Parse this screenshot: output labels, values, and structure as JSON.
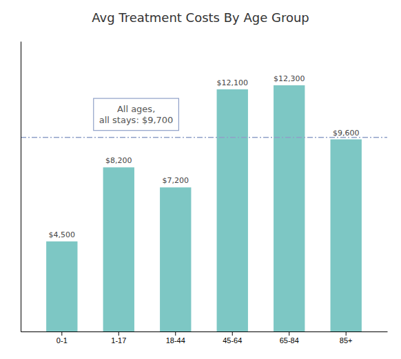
{
  "chart_data": {
    "type": "bar",
    "title": "Avg Treatment Costs By Age Group",
    "categories": [
      "0-1",
      "1-17",
      "18-44",
      "45-64",
      "65-84",
      "85+"
    ],
    "values": [
      4500,
      8200,
      7200,
      12100,
      12300,
      9600
    ],
    "value_labels": [
      "$4,500",
      "$8,200",
      "$7,200",
      "$12,100",
      "$12,300",
      "$9,600"
    ],
    "data_labels": true,
    "color": "#7dc7c4",
    "ylim": [
      0,
      14500
    ],
    "tick_labels": "x",
    "grid": false,
    "reference_line": {
      "value": 9700,
      "color": "#8fa0c8",
      "line_style": "dashdot"
    },
    "annotations": [
      {
        "text": "All ages,\nall stays: $9,700"
      }
    ]
  }
}
